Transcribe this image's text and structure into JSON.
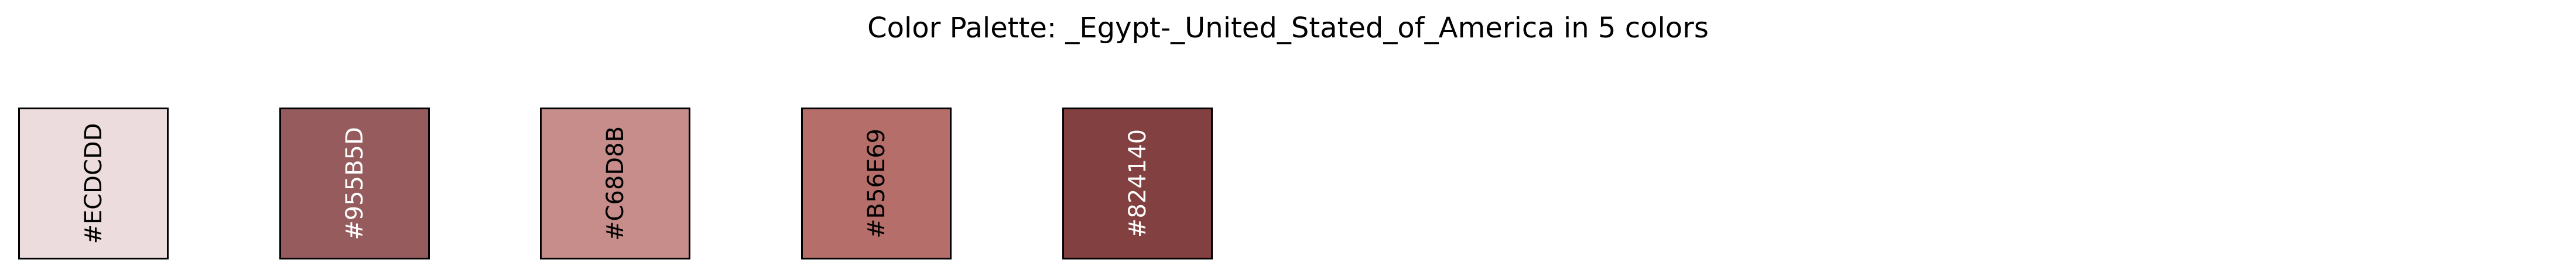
{
  "title": "Color Palette: _Egypt-_United_Stated_of_America in 5 colors",
  "swatches": [
    {
      "hex": "#ECDCDD",
      "label": "#ECDCDD",
      "text_color": "#000000"
    },
    {
      "hex": "#955B5D",
      "label": "#955B5D",
      "text_color": "#ffffff"
    },
    {
      "hex": "#C68D8B",
      "label": "#C68D8B",
      "text_color": "#000000"
    },
    {
      "hex": "#B56E69",
      "label": "#B56E69",
      "text_color": "#000000"
    },
    {
      "hex": "#824140",
      "label": "#824140",
      "text_color": "#ffffff"
    }
  ]
}
